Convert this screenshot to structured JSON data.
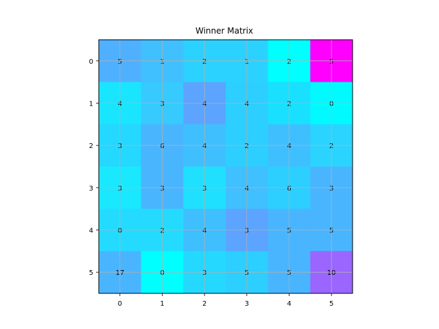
{
  "chart_data": {
    "type": "heatmap",
    "title": "Winner Matrix",
    "x_ticks": [
      "0",
      "1",
      "2",
      "3",
      "4",
      "5"
    ],
    "y_ticks": [
      "0",
      "1",
      "2",
      "3",
      "4",
      "5"
    ],
    "values": [
      [
        5,
        1,
        2,
        1,
        2,
        5
      ],
      [
        4,
        3,
        4,
        4,
        2,
        0
      ],
      [
        3,
        6,
        4,
        2,
        4,
        2
      ],
      [
        3,
        3,
        3,
        4,
        6,
        3
      ],
      [
        0,
        2,
        4,
        3,
        5,
        5
      ],
      [
        17,
        0,
        3,
        5,
        5,
        10
      ]
    ],
    "cell_colors": [
      [
        "#4fb0ff",
        "#40c0ff",
        "#2cd2ff",
        "#2cd2ff",
        "#00ffff",
        "#ff00ff"
      ],
      [
        "#1ae5ff",
        "#36caff",
        "#5ca4ff",
        "#2ccfff",
        "#1ae0ff",
        "#00faff"
      ],
      [
        "#24d8ff",
        "#4ab5ff",
        "#40bfff",
        "#2ccfff",
        "#40bfff",
        "#2ad4ff"
      ],
      [
        "#1ae8ff",
        "#4ab5ff",
        "#20e0ff",
        "#40c0ff",
        "#2ccfff",
        "#4ab5ff"
      ],
      [
        "#24dbff",
        "#24dbff",
        "#40bfff",
        "#5ca4ff",
        "#4ab5ff",
        "#4ab5ff"
      ],
      [
        "#4ab5ff",
        "#00ffff",
        "#24d8ff",
        "#2ccfff",
        "#4ab5ff",
        "#9a66ff"
      ]
    ],
    "grid": true,
    "colormap": "cool"
  }
}
